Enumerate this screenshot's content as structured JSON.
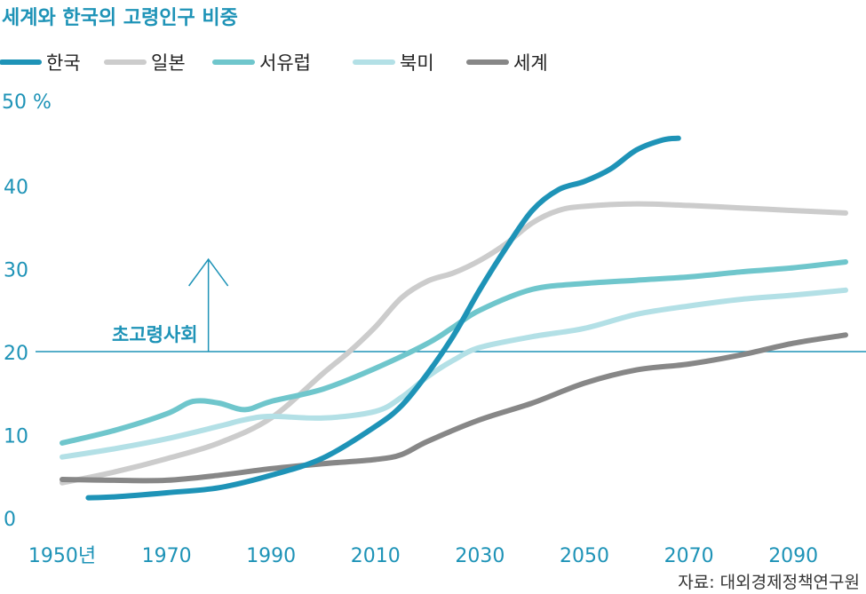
{
  "chart_data": {
    "type": "line",
    "title": "세계와 한국의 고령인구 비중",
    "y_unit_label": "50 %",
    "yticks": [
      "0",
      "10",
      "20",
      "30",
      "40"
    ],
    "xticks": [
      {
        "value": 1950,
        "label": "1950년"
      },
      {
        "value": 1970,
        "label": "1970"
      },
      {
        "value": 1990,
        "label": "1990"
      },
      {
        "value": 2010,
        "label": "2010"
      },
      {
        "value": 2030,
        "label": "2030"
      },
      {
        "value": 2050,
        "label": "2050"
      },
      {
        "value": 2070,
        "label": "2070"
      },
      {
        "value": 2090,
        "label": "2090"
      }
    ],
    "xlim": [
      1944,
      2100
    ],
    "ylim": [
      0,
      50
    ],
    "threshold": {
      "value": 20,
      "label": "초고령사회",
      "x": 1978
    },
    "series": [
      {
        "name": "일본",
        "color": "#cccccc",
        "points": [
          [
            1950,
            4.2
          ],
          [
            1960,
            5.5
          ],
          [
            1970,
            7.1
          ],
          [
            1980,
            9.0
          ],
          [
            1990,
            12.0
          ],
          [
            2000,
            17.4
          ],
          [
            2005,
            20.0
          ],
          [
            2010,
            23.0
          ],
          [
            2015,
            26.5
          ],
          [
            2020,
            28.5
          ],
          [
            2025,
            29.5
          ],
          [
            2030,
            31.0
          ],
          [
            2035,
            33.0
          ],
          [
            2040,
            35.5
          ],
          [
            2045,
            37.0
          ],
          [
            2050,
            37.5
          ],
          [
            2060,
            37.8
          ],
          [
            2070,
            37.6
          ],
          [
            2080,
            37.3
          ],
          [
            2090,
            37.0
          ],
          [
            2100,
            36.7
          ]
        ]
      },
      {
        "name": "서유럽",
        "color": "#6fc6cc",
        "points": [
          [
            1950,
            9.0
          ],
          [
            1960,
            10.5
          ],
          [
            1970,
            12.5
          ],
          [
            1975,
            14.0
          ],
          [
            1980,
            13.8
          ],
          [
            1985,
            13.0
          ],
          [
            1990,
            14.0
          ],
          [
            2000,
            15.5
          ],
          [
            2010,
            18.0
          ],
          [
            2020,
            21.0
          ],
          [
            2025,
            23.0
          ],
          [
            2030,
            25.0
          ],
          [
            2040,
            27.5
          ],
          [
            2050,
            28.2
          ],
          [
            2060,
            28.6
          ],
          [
            2070,
            29.0
          ],
          [
            2080,
            29.6
          ],
          [
            2090,
            30.1
          ],
          [
            2100,
            30.8
          ]
        ]
      },
      {
        "name": "북미",
        "color": "#b3e0e6",
        "points": [
          [
            1950,
            7.3
          ],
          [
            1960,
            8.3
          ],
          [
            1970,
            9.5
          ],
          [
            1980,
            11.0
          ],
          [
            1985,
            11.8
          ],
          [
            1990,
            12.2
          ],
          [
            2000,
            12.0
          ],
          [
            2010,
            12.8
          ],
          [
            2015,
            14.5
          ],
          [
            2020,
            17.0
          ],
          [
            2025,
            19.0
          ],
          [
            2030,
            20.5
          ],
          [
            2040,
            21.8
          ],
          [
            2050,
            22.8
          ],
          [
            2060,
            24.5
          ],
          [
            2070,
            25.5
          ],
          [
            2080,
            26.3
          ],
          [
            2090,
            26.8
          ],
          [
            2100,
            27.4
          ]
        ]
      },
      {
        "name": "세계",
        "color": "#878787",
        "points": [
          [
            1950,
            4.6
          ],
          [
            1960,
            4.5
          ],
          [
            1970,
            4.5
          ],
          [
            1980,
            5.1
          ],
          [
            1990,
            5.9
          ],
          [
            2000,
            6.5
          ],
          [
            2010,
            7.0
          ],
          [
            2015,
            7.6
          ],
          [
            2020,
            9.2
          ],
          [
            2030,
            11.8
          ],
          [
            2040,
            13.8
          ],
          [
            2050,
            16.2
          ],
          [
            2060,
            17.8
          ],
          [
            2070,
            18.5
          ],
          [
            2080,
            19.6
          ],
          [
            2090,
            21.0
          ],
          [
            2100,
            22.0
          ]
        ]
      },
      {
        "name": "한국",
        "color": "#1e93b7",
        "points": [
          [
            1955,
            2.4
          ],
          [
            1960,
            2.5
          ],
          [
            1970,
            3.0
          ],
          [
            1980,
            3.6
          ],
          [
            1990,
            5.1
          ],
          [
            2000,
            7.2
          ],
          [
            2010,
            11.0
          ],
          [
            2015,
            13.5
          ],
          [
            2020,
            17.4
          ],
          [
            2025,
            22.0
          ],
          [
            2030,
            27.5
          ],
          [
            2035,
            32.5
          ],
          [
            2040,
            37.0
          ],
          [
            2045,
            39.5
          ],
          [
            2050,
            40.5
          ],
          [
            2055,
            42.0
          ],
          [
            2060,
            44.3
          ],
          [
            2065,
            45.5
          ],
          [
            2068,
            45.7
          ]
        ]
      }
    ]
  },
  "legend": [
    {
      "name": "한국",
      "color": "#1e93b7"
    },
    {
      "name": "일본",
      "color": "#cccccc"
    },
    {
      "name": "서유럽",
      "color": "#6fc6cc"
    },
    {
      "name": "북미",
      "color": "#b3e0e6"
    },
    {
      "name": "세계",
      "color": "#878787"
    }
  ],
  "source": "자료: 대외경제정책연구원"
}
